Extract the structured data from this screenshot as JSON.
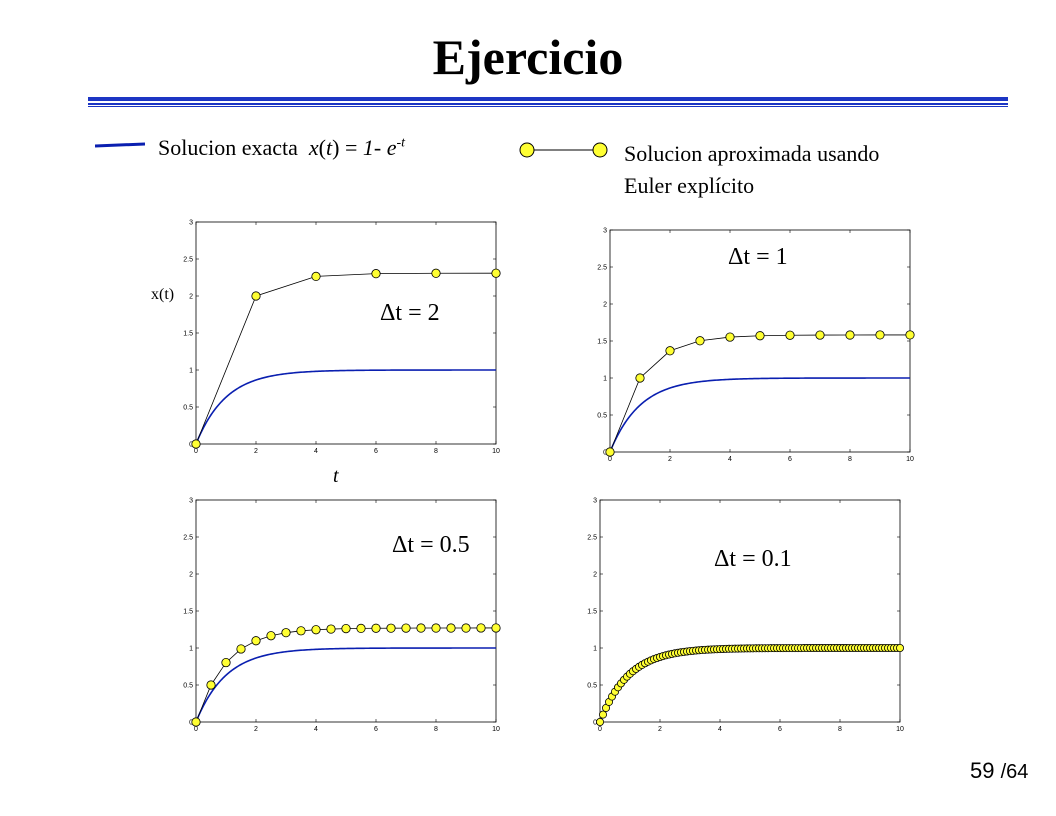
{
  "slide": {
    "title": "Ejercicio",
    "page_current": "59",
    "page_total": "/64"
  },
  "legend": {
    "exact_label": "Solucion exacta",
    "exact_formula_x": "x",
    "exact_formula_t": "t",
    "exact_formula_mid": " = ",
    "exact_formula_one": "1- e",
    "exact_formula_exp": "-t",
    "approx_line1": "Solucion aproximada usando",
    "approx_line2": "Euler explícito",
    "exact_color": "#0a1fb0",
    "marker_color": "#ffff33"
  },
  "chart_data": [
    {
      "type": "line",
      "annotation": "Δt = 2",
      "dt": 2,
      "xlabel": "t",
      "ylabel": "x(t)",
      "xlim": [
        0,
        10
      ],
      "ylim": [
        0,
        3
      ],
      "xticks": [
        "0",
        "2",
        "4",
        "6",
        "8",
        "10"
      ],
      "yticks": [
        "0",
        "0.5",
        "1",
        "1.5",
        "2",
        "2.5",
        "3"
      ],
      "series": [
        {
          "values_x": [
            0,
            2,
            4,
            6,
            8,
            10
          ],
          "values": [
            0,
            2,
            2.265,
            2.302,
            2.307,
            2.308
          ]
        }
      ]
    },
    {
      "type": "line",
      "annotation": "Δt = 1",
      "dt": 1,
      "xlim": [
        0,
        10
      ],
      "ylim": [
        0,
        3
      ],
      "xticks": [
        "0",
        "2",
        "4",
        "6",
        "8",
        "10"
      ],
      "yticks": [
        "0",
        "0.5",
        "1",
        "1.5",
        "2",
        "2.5",
        "3"
      ],
      "series": [
        {
          "values_x": [
            0,
            1,
            2,
            3,
            4,
            5,
            6,
            7,
            8,
            9,
            10
          ],
          "values": [
            0,
            1,
            1.368,
            1.503,
            1.553,
            1.571,
            1.578,
            1.58,
            1.581,
            1.582,
            1.582
          ]
        }
      ]
    },
    {
      "type": "line",
      "annotation": "Δt = 0.5",
      "dt": 0.5,
      "xlim": [
        0,
        10
      ],
      "ylim": [
        0,
        3
      ],
      "xticks": [
        "0",
        "2",
        "4",
        "6",
        "8",
        "10"
      ],
      "yticks": [
        "0",
        "0.5",
        "1",
        "1.5",
        "2",
        "2.5",
        "3"
      ],
      "series": [
        {
          "values_x": [
            0,
            0.5,
            1,
            1.5,
            2,
            2.5,
            3,
            3.5,
            4,
            4.5,
            5,
            5.5,
            6,
            6.5,
            7,
            7.5,
            8,
            8.5,
            9,
            9.5,
            10
          ],
          "values": [
            0,
            0.5,
            0.803,
            0.987,
            1.098,
            1.166,
            1.207,
            1.232,
            1.247,
            1.256,
            1.262,
            1.265,
            1.267,
            1.268,
            1.269,
            1.27,
            1.27,
            1.27,
            1.27,
            1.271,
            1.271
          ]
        }
      ]
    },
    {
      "type": "line",
      "annotation": "Δt = 0.1",
      "dt": 0.1,
      "xlim": [
        0,
        10
      ],
      "ylim": [
        0,
        3
      ],
      "xticks": [
        "0",
        "2",
        "4",
        "6",
        "8",
        "10"
      ],
      "yticks": [
        "0",
        "0.5",
        "1",
        "1.5",
        "2",
        "2.5",
        "3"
      ],
      "series": []
    }
  ]
}
